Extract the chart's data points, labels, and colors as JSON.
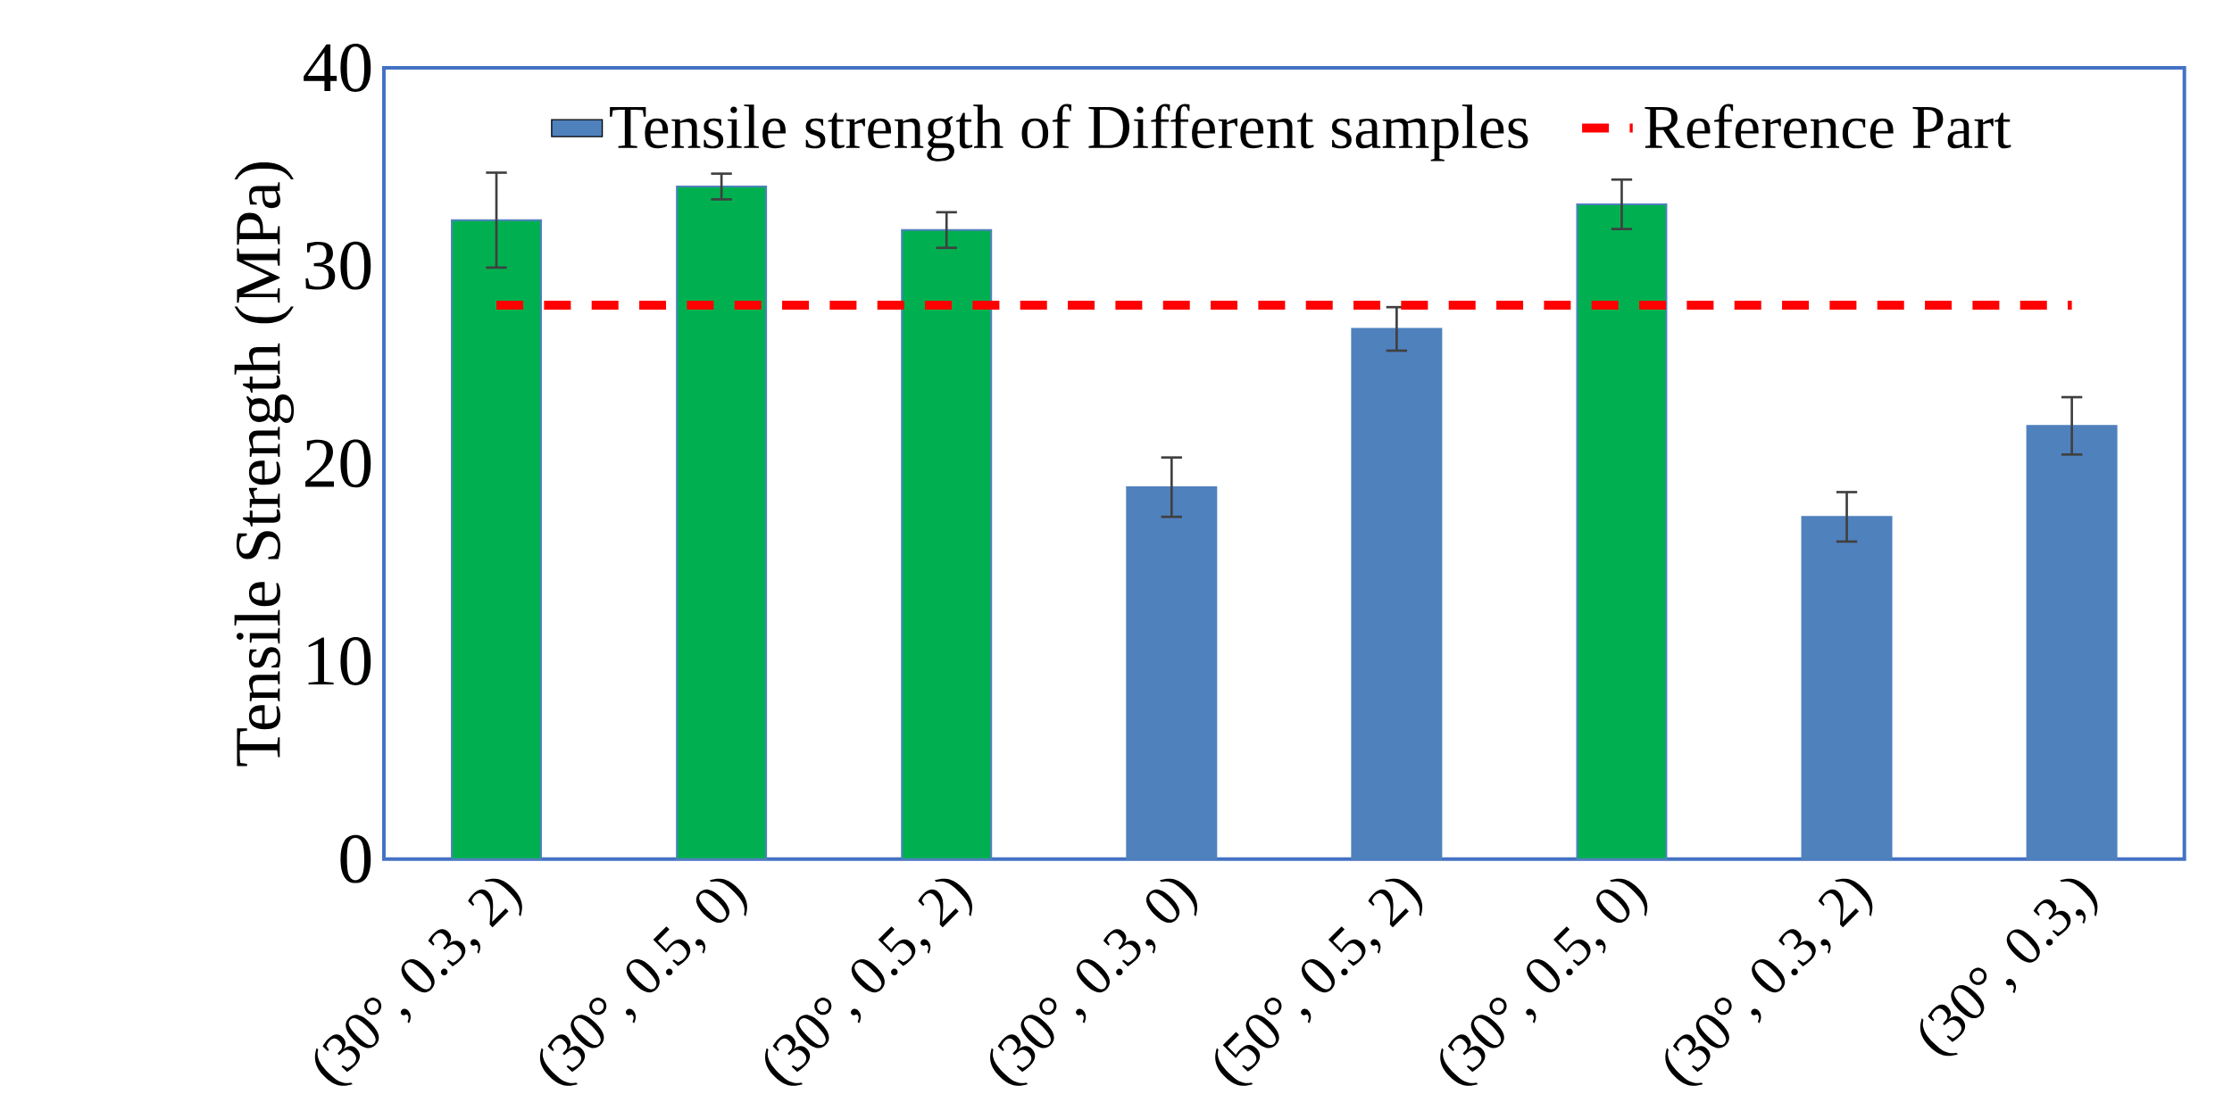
{
  "chart_data": {
    "type": "bar",
    "ylabel": "Tensile Strength (MPa)",
    "categories": [
      "(30°, 0.3, 2)",
      "(30°, 0.5, 0)",
      "(30°, 0.5, 2)",
      "(30°, 0.3, 0)",
      "(50°, 0.5, 2)",
      "(30°, 0.5, 0)",
      "(30°, 0.3, 2)",
      "(30°, 0.3,)"
    ],
    "series": [
      {
        "name": "Tensile strength of Different samples",
        "color": "#4f81bd",
        "colors": [
          "#00b050",
          "#00b050",
          "#00b050",
          "#4f81bd",
          "#4f81bd",
          "#00b050",
          "#4f81bd",
          "#4f81bd"
        ],
        "values": [
          32.3,
          34.0,
          31.8,
          18.8,
          26.8,
          33.1,
          17.3,
          21.9
        ],
        "errors": [
          2.4,
          0.65,
          0.9,
          1.5,
          1.1,
          1.25,
          1.25,
          1.45
        ]
      },
      {
        "name": "Reference Part",
        "type": "line",
        "color": "#ff0000",
        "line_style": "dashed",
        "marker": "none",
        "values": [
          28,
          28,
          28,
          28,
          28,
          28,
          28,
          28
        ]
      }
    ],
    "ylim": [
      0,
      40
    ],
    "yticks": [
      0,
      10,
      20,
      30,
      40
    ],
    "grid": false,
    "legend": "top"
  }
}
